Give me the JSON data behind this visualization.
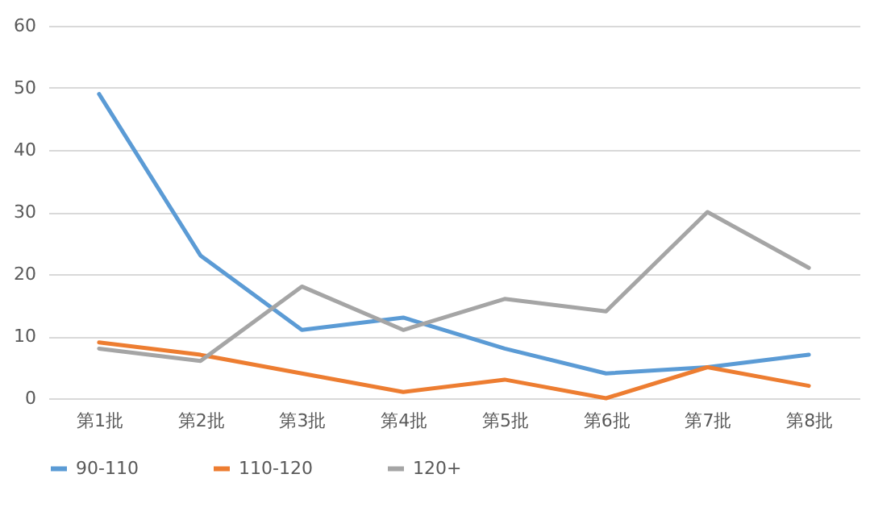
{
  "chart_data": {
    "type": "line",
    "categories": [
      "第1批",
      "第2批",
      "第3批",
      "第4批",
      "第5批",
      "第6批",
      "第7批",
      "第8批"
    ],
    "series": [
      {
        "name": "90-110",
        "color": "#5b9bd5",
        "values": [
          49,
          23,
          11,
          13,
          8,
          4,
          5,
          7
        ]
      },
      {
        "name": "110-120",
        "color": "#ed7d31",
        "values": [
          9,
          7,
          4,
          1,
          3,
          0,
          5,
          2
        ]
      },
      {
        "name": "120+",
        "color": "#a5a5a5",
        "values": [
          8,
          6,
          18,
          11,
          16,
          14,
          30,
          21
        ]
      }
    ],
    "ylim": [
      0,
      60
    ],
    "yticks": [
      0,
      10,
      20,
      30,
      40,
      50,
      60
    ],
    "grid": "y",
    "legend": "bottom",
    "marker": "none",
    "line_style": "solid"
  }
}
